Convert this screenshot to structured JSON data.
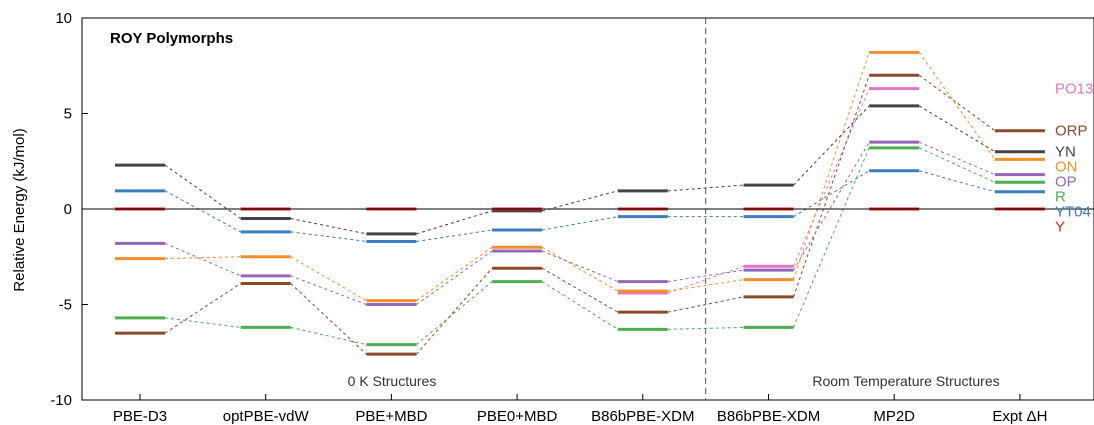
{
  "chart_data": {
    "type": "line",
    "title": "ROY Polymorphs",
    "xlabel": "",
    "ylabel": "Relative Energy (kJ/mol)",
    "ylim": [
      -10,
      10
    ],
    "yticks": [
      -10,
      -5,
      0,
      5,
      10
    ],
    "categories": [
      "PBE-D3",
      "optPBE-vdW",
      "PBE+MBD",
      "PBE0+MBD",
      "B86bPBE-XDM",
      "B86bPBE-XDM",
      "MP2D",
      "Expt ΔH"
    ],
    "grid": false,
    "zero_line": true,
    "annotations": [
      "0 K Structures",
      "Room Temperature Structures"
    ],
    "series": [
      {
        "name": "PO13",
        "color": "#e377c2",
        "values": [
          null,
          null,
          null,
          null,
          -4.4,
          -3.0,
          6.3,
          null
        ]
      },
      {
        "name": "ORP",
        "color": "#8c4a2a",
        "values": [
          -6.5,
          -3.9,
          -7.6,
          -3.1,
          -5.4,
          -4.6,
          7.0,
          4.1
        ]
      },
      {
        "name": "YN",
        "color": "#444444",
        "values": [
          2.3,
          -0.5,
          -1.3,
          -0.1,
          0.95,
          1.25,
          5.4,
          3.0
        ]
      },
      {
        "name": "ON",
        "color": "#f28e2b",
        "values": [
          -2.6,
          -2.5,
          -4.8,
          -2.0,
          -4.3,
          -3.7,
          8.2,
          2.6
        ]
      },
      {
        "name": "OP",
        "color": "#9467bd",
        "values": [
          -1.8,
          -3.5,
          -5.0,
          -2.2,
          -3.8,
          -3.2,
          3.5,
          1.8
        ]
      },
      {
        "name": "R",
        "color": "#4caf50",
        "values": [
          -5.7,
          -6.2,
          -7.1,
          -3.8,
          -6.3,
          -6.2,
          3.2,
          1.4
        ]
      },
      {
        "name": "YT04",
        "color": "#3a7ebf",
        "values": [
          0.95,
          -1.2,
          -1.7,
          -1.1,
          -0.4,
          -0.4,
          2.0,
          0.9
        ]
      },
      {
        "name": "Y",
        "color": "#e02020",
        "values": [
          0,
          0,
          0,
          0,
          0,
          0,
          0,
          0
        ]
      }
    ]
  }
}
